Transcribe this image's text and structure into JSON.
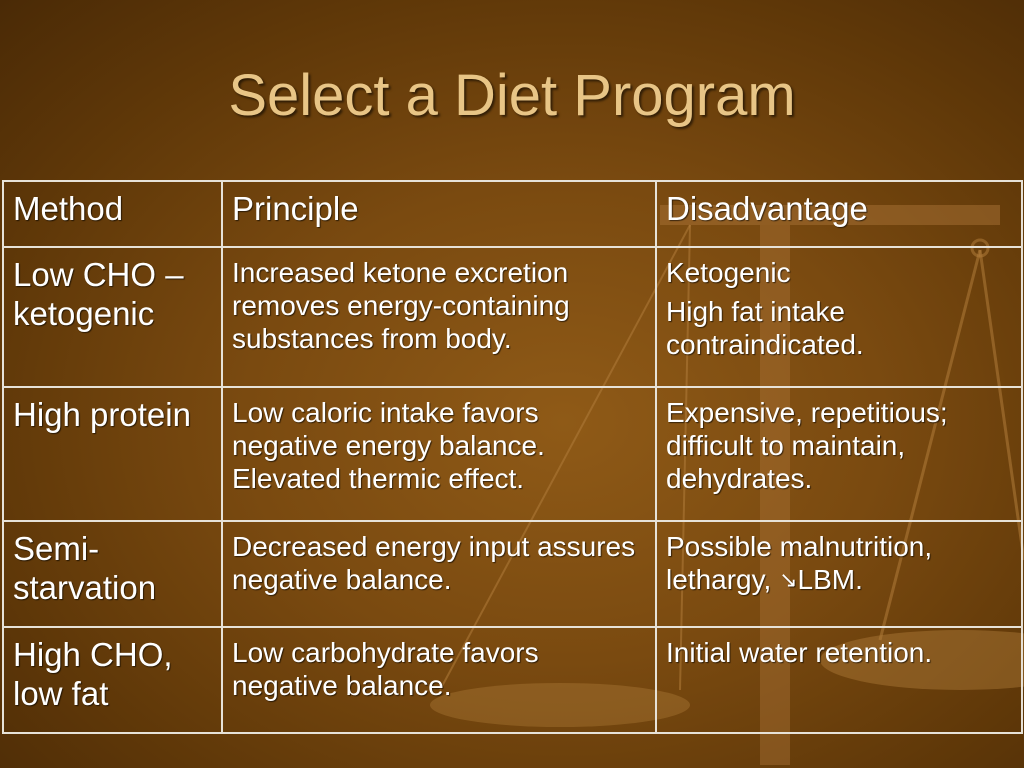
{
  "title": "Select a Diet Program",
  "table": {
    "headers": [
      "Method",
      "Principle",
      "Disadvantage"
    ],
    "rows": [
      {
        "method": "Low CHO – ketogenic",
        "principle": "Increased ketone excretion removes energy-containing substances from body.",
        "disadvantage": [
          "Ketogenic",
          "High fat intake contraindicated."
        ]
      },
      {
        "method": "High protein",
        "principle": "Low caloric intake favors negative energy balance. Elevated thermic effect.",
        "disadvantage": [
          "Expensive, repetitious; difficult to maintain, dehydrates."
        ]
      },
      {
        "method": "Semi-starvation",
        "principle": "Decreased energy input assures negative balance.",
        "disadvantage_prefix": "Possible malnutrition, lethargy, ",
        "disadvantage_icon": "decrease-arrow-icon",
        "disadvantage_suffix": "LBM."
      },
      {
        "method": "High CHO, low fat",
        "principle": "Low carbohydrate favors negative balance.",
        "disadvantage": [
          "Initial water retention."
        ]
      }
    ]
  }
}
